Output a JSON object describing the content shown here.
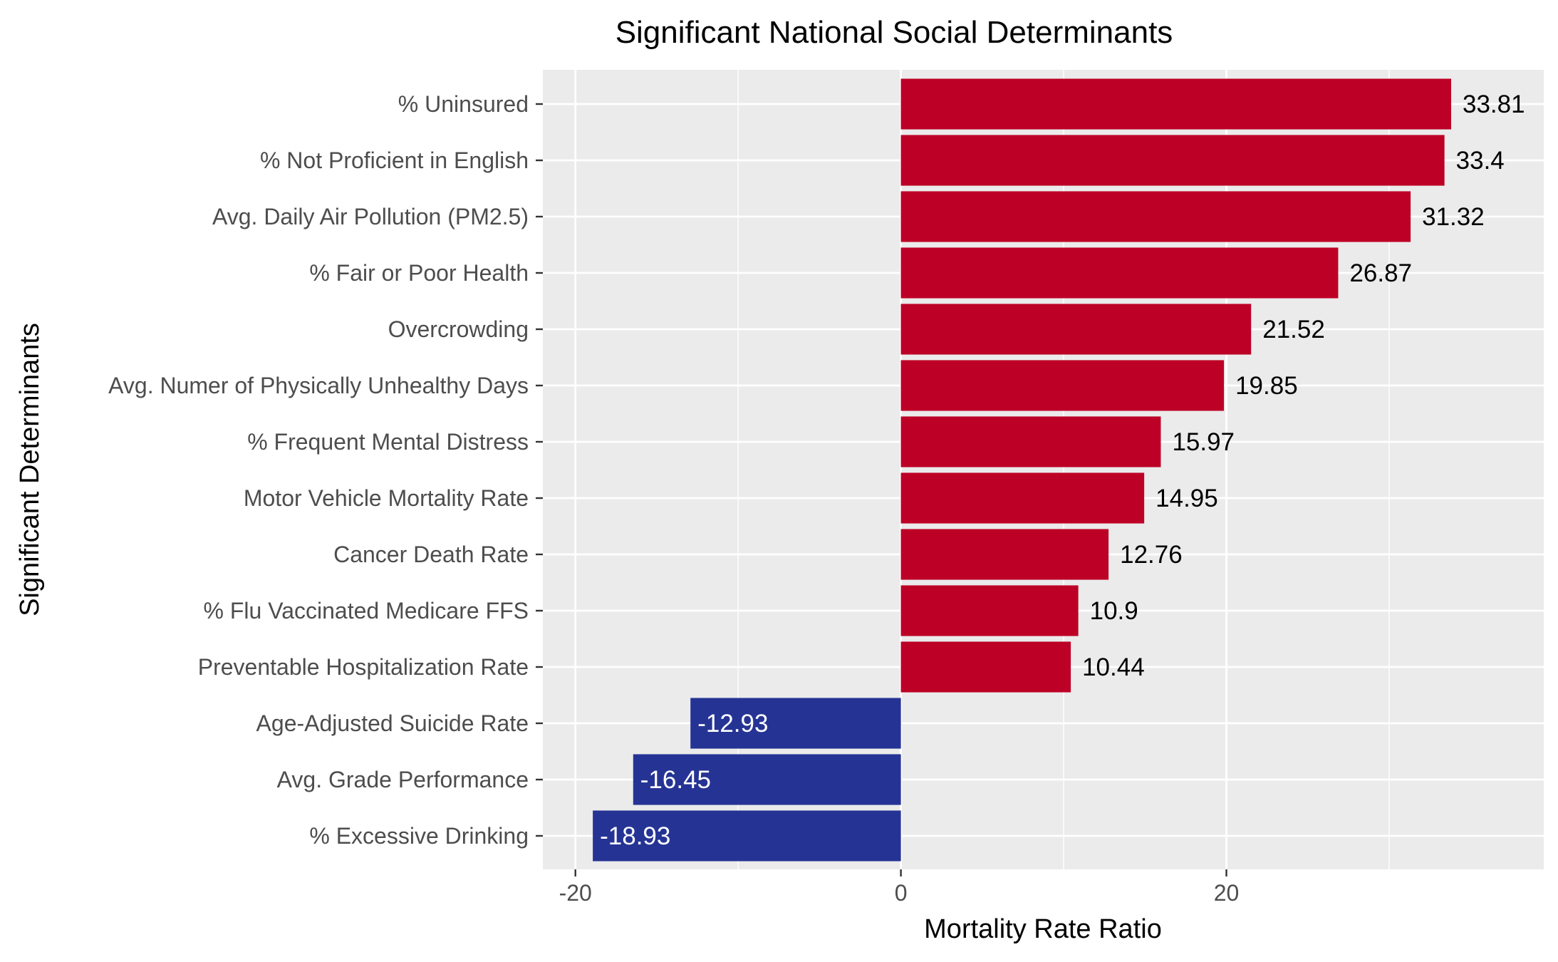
{
  "chart_data": {
    "type": "bar",
    "orientation": "horizontal",
    "title": "Significant National Social Determinants",
    "xlabel": "Mortality Rate Ratio",
    "ylabel": "Significant Determinants",
    "xlim": [
      -22,
      39.5
    ],
    "xticks": [
      -20,
      0,
      20
    ],
    "xtick_labels": [
      "-20",
      "0",
      "20"
    ],
    "grid": true,
    "categories": [
      "% Uninsured",
      "% Not Proficient in English",
      "Avg. Daily Air Pollution (PM2.5)",
      "% Fair or Poor Health",
      "Overcrowding",
      "Avg. Numer of Physically Unhealthy Days",
      "% Frequent Mental Distress",
      "Motor Vehicle Mortality Rate",
      "Cancer Death Rate",
      "% Flu Vaccinated Medicare FFS",
      "Preventable Hospitalization Rate",
      "Age-Adjusted Suicide Rate",
      "Avg. Grade Performance",
      "% Excessive Drinking"
    ],
    "values": [
      33.81,
      33.4,
      31.32,
      26.87,
      21.52,
      19.85,
      15.97,
      14.95,
      12.76,
      10.9,
      10.44,
      -12.93,
      -16.45,
      -18.93
    ],
    "value_labels": [
      "33.81",
      "33.4",
      "31.32",
      "26.87",
      "21.52",
      "19.85",
      "15.97",
      "14.95",
      "12.76",
      "10.9",
      "10.44",
      "-12.93",
      "-16.45",
      "-18.93"
    ],
    "colors": {
      "positive": "#BD0026",
      "negative": "#253494",
      "panel_background": "#EBEBEB",
      "grid": "#FFFFFF",
      "positive_label": "#000000",
      "negative_label": "#FFFFFF"
    }
  }
}
